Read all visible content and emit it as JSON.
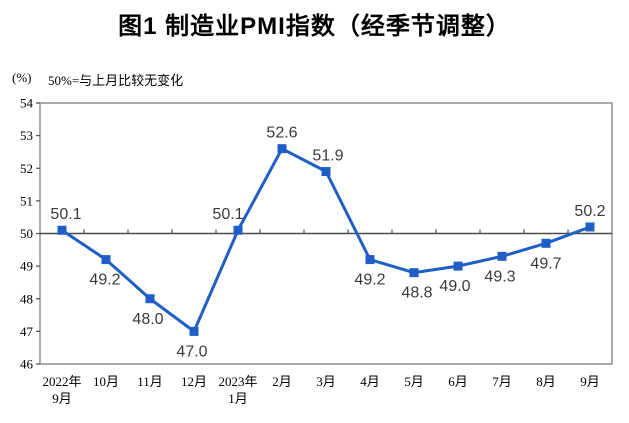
{
  "page": {
    "background": "#ffffff"
  },
  "chart_data": {
    "type": "line",
    "title": "图1 制造业PMI指数（经季节调整）",
    "unit_label": "(%)",
    "subtitle_note": "50%=与上月比较无变化",
    "categories": [
      [
        "2022年",
        "9月"
      ],
      [
        "10月"
      ],
      [
        "11月"
      ],
      [
        "12月"
      ],
      [
        "2023年",
        "1月"
      ],
      [
        "2月"
      ],
      [
        "3月"
      ],
      [
        "4月"
      ],
      [
        "5月"
      ],
      [
        "6月"
      ],
      [
        "7月"
      ],
      [
        "8月"
      ],
      [
        "9月"
      ]
    ],
    "values": [
      50.1,
      49.2,
      48.0,
      47.0,
      50.1,
      52.6,
      51.9,
      49.2,
      48.8,
      49.0,
      49.3,
      49.7,
      50.2
    ],
    "data_labels": [
      "50.1",
      "49.2",
      "48.0",
      "47.0",
      "50.1",
      "52.6",
      "51.9",
      "49.2",
      "48.8",
      "49.0",
      "49.3",
      "49.7",
      "50.2"
    ],
    "series_name": "制造业PMI",
    "xlabel": "",
    "ylabel": "",
    "ylim": [
      46,
      54
    ],
    "ytick_step": 1,
    "x_axis_cross_at": 50,
    "grid": "off",
    "legend": "none",
    "marker": "square",
    "colors": {
      "line": "#1e5ec6",
      "marker": "#1e5ec6",
      "point_label": "#3a3a3a",
      "axis_text": "#000000",
      "plot_border": "#808080",
      "baseline_50": "#4a4a4a",
      "title": "#000000"
    }
  }
}
